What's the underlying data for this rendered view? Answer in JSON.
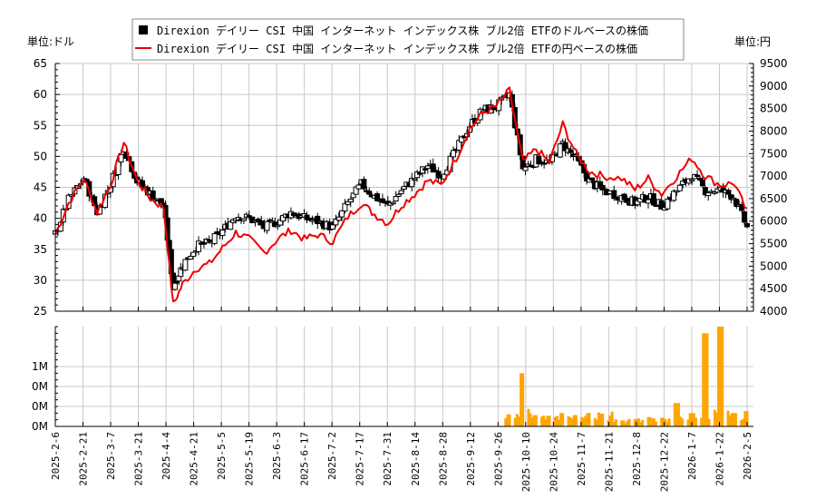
{
  "legend": {
    "items": [
      {
        "label": "Direxion デイリー CSI 中国 インターネット インデックス株 ブル2倍 ETFのドルベースの株価",
        "marker": "black-square",
        "color": "#000000"
      },
      {
        "label": "Direxion デイリー CSI 中国 インターネット インデックス株 ブル2倍 ETFの円ベースの株価",
        "marker": "red-line",
        "color": "#ee0000"
      }
    ]
  },
  "axes": {
    "left_unit": "単位:ドル",
    "right_unit": "単位:円",
    "left_ticks": [
      "65",
      "60",
      "55",
      "50",
      "45",
      "40",
      "35",
      "30",
      "25"
    ],
    "right_ticks": [
      "9500",
      "9000",
      "8500",
      "8000",
      "7500",
      "7000",
      "6500",
      "6000",
      "5500",
      "5000",
      "4500",
      "4000"
    ],
    "volume_ticks": [
      "1M",
      "0M",
      "0M",
      "0M"
    ],
    "x_ticks": [
      "2025-2-6",
      "2025-2-21",
      "2025-3-7",
      "2025-3-21",
      "2025-4-4",
      "2025-4-21",
      "2025-5-5",
      "2025-5-19",
      "2025-6-3",
      "2025-6-17",
      "2025-7-2",
      "2025-7-17",
      "2025-7-31",
      "2025-8-14",
      "2025-8-28",
      "2025-9-12",
      "2025-9-26",
      "2025-10-10",
      "2025-10-24",
      "2025-11-7",
      "2025-11-21",
      "2025-12-8",
      "2025-12-22",
      "2026-1-7",
      "2026-1-22",
      "2026-2-5"
    ]
  },
  "colors": {
    "candle": "#000000",
    "yen_line": "#ee0000",
    "volume": "#ffa500",
    "grid": "#c8c8c8"
  },
  "chart_data": [
    {
      "type": "line",
      "title": "Direxion デイリー CSI 中国 インターネット インデックス株 ブル2倍 ETF 株価",
      "xlabel": "",
      "ylabel": "単位:ドル (left) / 単位:円 (right)",
      "ylim_left": [
        25,
        65
      ],
      "ylim_right": [
        4000,
        9500
      ],
      "grid": true,
      "legend_position": "top-center",
      "x": [
        "2025-2-6",
        "2025-2-13",
        "2025-2-21",
        "2025-2-28",
        "2025-3-7",
        "2025-3-14",
        "2025-3-21",
        "2025-3-28",
        "2025-4-4",
        "2025-4-9",
        "2025-4-14",
        "2025-4-21",
        "2025-4-28",
        "2025-5-5",
        "2025-5-12",
        "2025-5-19",
        "2025-5-27",
        "2025-6-3",
        "2025-6-10",
        "2025-6-17",
        "2025-6-24",
        "2025-7-2",
        "2025-7-10",
        "2025-7-17",
        "2025-7-24",
        "2025-7-31",
        "2025-8-7",
        "2025-8-14",
        "2025-8-21",
        "2025-8-28",
        "2025-9-5",
        "2025-9-12",
        "2025-9-19",
        "2025-9-26",
        "2025-10-3",
        "2025-10-10",
        "2025-10-17",
        "2025-10-24",
        "2025-10-31",
        "2025-11-7",
        "2025-11-14",
        "2025-11-21",
        "2025-12-1",
        "2025-12-8",
        "2025-12-15",
        "2025-12-22",
        "2025-12-30",
        "2026-1-7",
        "2026-1-14",
        "2026-1-22",
        "2026-1-29",
        "2026-2-5"
      ],
      "series": [
        {
          "name": "ドルベースの株価 (終値)",
          "axis": "left",
          "values": [
            37.5,
            43.0,
            46.5,
            41.0,
            45.5,
            51.5,
            46.0,
            44.0,
            42.0,
            29.0,
            32.5,
            35.5,
            36.0,
            38.0,
            40.5,
            40.0,
            38.5,
            39.5,
            41.0,
            40.0,
            39.5,
            38.5,
            42.5,
            45.5,
            43.5,
            42.0,
            44.5,
            46.5,
            48.5,
            47.0,
            51.0,
            55.0,
            57.5,
            58.0,
            60.0,
            48.0,
            49.5,
            49.0,
            52.0,
            49.5,
            46.0,
            44.5,
            43.5,
            42.5,
            43.5,
            42.0,
            44.5,
            47.0,
            44.5,
            44.5,
            43.5,
            38.5
          ]
        },
        {
          "name": "円ベースの株価",
          "axis": "right",
          "values": [
            5700,
            6400,
            6950,
            6200,
            6800,
            7750,
            6900,
            6500,
            6300,
            4150,
            4600,
            4950,
            5050,
            5400,
            5750,
            5600,
            5300,
            5600,
            5800,
            5600,
            5700,
            5550,
            6100,
            6400,
            6150,
            5950,
            6350,
            6600,
            6900,
            6800,
            7400,
            8050,
            8400,
            8550,
            8900,
            7300,
            7600,
            7300,
            8150,
            7500,
            7100,
            7000,
            6950,
            6700,
            6950,
            6600,
            7000,
            7400,
            7000,
            6800,
            6850,
            6200
          ]
        }
      ]
    },
    {
      "type": "bar",
      "title": "出来高",
      "ylabel": "",
      "ylim": [
        0,
        1500000
      ],
      "tick_labels": [
        "0M",
        "0M",
        "0M",
        "1M"
      ],
      "x": [
        "2025-10-3",
        "2025-10-10",
        "2025-10-17",
        "2025-10-24",
        "2025-10-31",
        "2025-11-7",
        "2025-11-14",
        "2025-11-21",
        "2025-12-1",
        "2025-12-8",
        "2025-12-15",
        "2025-12-22",
        "2025-12-30",
        "2026-1-7",
        "2026-1-14",
        "2026-1-22",
        "2026-1-29",
        "2026-2-5"
      ],
      "values": [
        180000,
        800000,
        170000,
        160000,
        200000,
        170000,
        200000,
        190000,
        90000,
        110000,
        140000,
        130000,
        350000,
        200000,
        1400000,
        1500000,
        200000,
        230000
      ]
    }
  ]
}
